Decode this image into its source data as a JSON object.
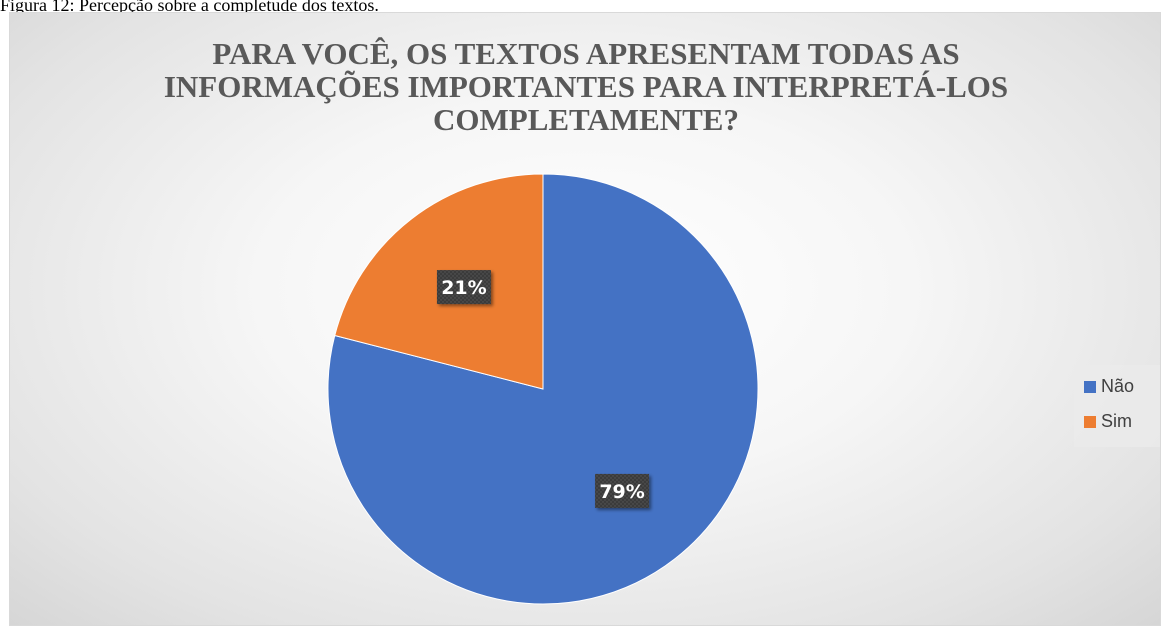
{
  "caption": "Figura 12: Percepção sobre a completude dos textos.",
  "chart_data": {
    "type": "pie",
    "title": "PARA VOCÊ, OS TEXTOS APRESENTAM TODAS AS\nINFORMAÇÕES IMPORTANTES PARA INTERPRETÁ-LOS\nCOMPLETAMENTE?",
    "categories": [
      "Não",
      "Sim"
    ],
    "values": [
      79,
      21
    ],
    "data_labels": [
      "79%",
      "21%"
    ],
    "colors": [
      "#4472c4",
      "#ed7d31"
    ],
    "legend": {
      "placement": "right",
      "entries": [
        "Não",
        "Sim"
      ]
    },
    "start_angle": "12 o'clock, clockwise"
  }
}
